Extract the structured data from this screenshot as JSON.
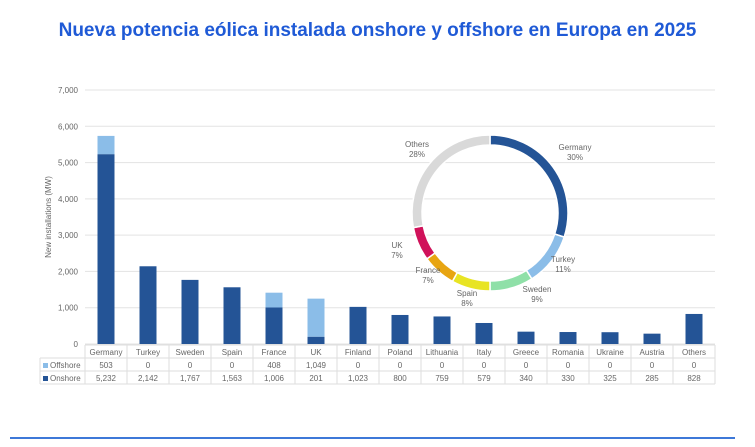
{
  "title": "Nueva potencia eólica instalada onshore y offshore en Europa en 2025",
  "chart_data": [
    {
      "type": "bar",
      "stacked": true,
      "ylabel": "New installations (MW)",
      "ylim": [
        0,
        7000
      ],
      "yticks": [
        0,
        1000,
        2000,
        3000,
        4000,
        5000,
        6000,
        7000
      ],
      "ytick_labels": [
        "0",
        "1,000",
        "2,000",
        "3,000",
        "4,000",
        "5,000",
        "6,000",
        "7,000"
      ],
      "grid": true,
      "categories": [
        "Germany",
        "Turkey",
        "Sweden",
        "Spain",
        "France",
        "UK",
        "Finland",
        "Poland",
        "Lithuania",
        "Italy",
        "Greece",
        "Romania",
        "Ukraine",
        "Austria",
        "Others"
      ],
      "series": [
        {
          "name": "Onshore",
          "color": "#245496",
          "values": [
            5232,
            2142,
            1767,
            1563,
            1006,
            201,
            1023,
            800,
            759,
            579,
            340,
            330,
            325,
            285,
            828
          ],
          "labels": [
            "5,232",
            "2,142",
            "1,767",
            "1,563",
            "1,006",
            "201",
            "1,023",
            "800",
            "759",
            "579",
            "340",
            "330",
            "325",
            "285",
            "828"
          ]
        },
        {
          "name": "Offshore",
          "color": "#8bbde8",
          "values": [
            503,
            0,
            0,
            0,
            408,
            1049,
            0,
            0,
            0,
            0,
            0,
            0,
            0,
            0,
            0
          ],
          "labels": [
            "503",
            "0",
            "0",
            "0",
            "408",
            "1,049",
            "0",
            "0",
            "0",
            "0",
            "0",
            "0",
            "0",
            "0",
            "0"
          ]
        }
      ]
    },
    {
      "type": "pie",
      "donut": true,
      "slices": [
        {
          "label": "Germany",
          "value": 30,
          "text": "30%",
          "color": "#245496"
        },
        {
          "label": "Turkey",
          "value": 11,
          "text": "11%",
          "color": "#8bbde8"
        },
        {
          "label": "Sweden",
          "value": 9,
          "text": "9%",
          "color": "#8fe0a8"
        },
        {
          "label": "Spain",
          "value": 8,
          "text": "8%",
          "color": "#e8e424"
        },
        {
          "label": "France",
          "value": 7,
          "text": "7%",
          "color": "#e8a512"
        },
        {
          "label": "UK",
          "value": 7,
          "text": "7%",
          "color": "#d0125a"
        },
        {
          "label": "Others",
          "value": 28,
          "text": "28%",
          "color": "#d9d9d9"
        }
      ]
    }
  ]
}
